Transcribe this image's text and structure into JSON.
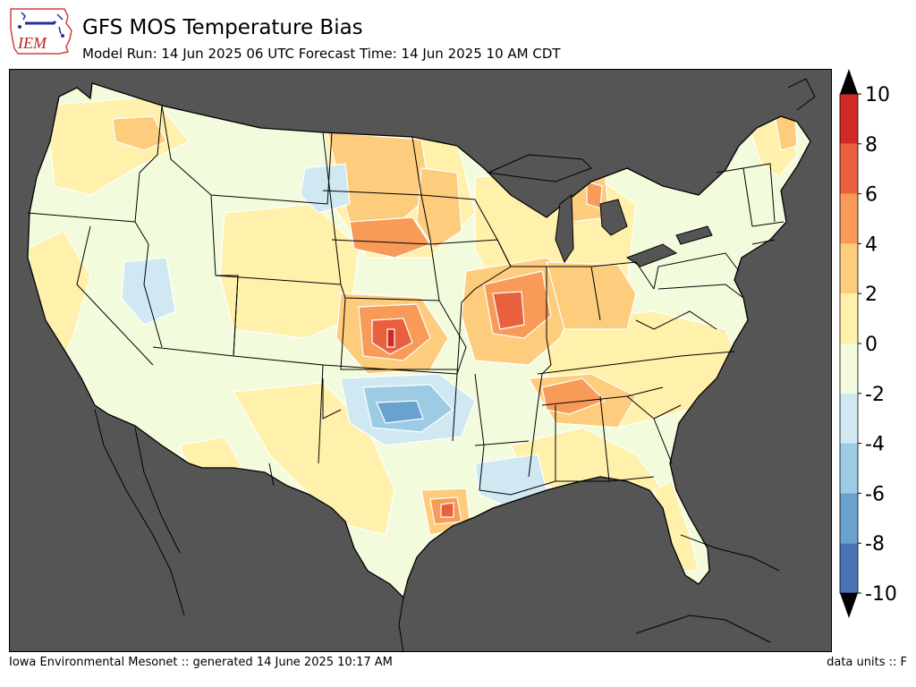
{
  "header": {
    "title": "GFS MOS Temperature Bias",
    "subtitle": "Model Run: 14 Jun 2025 06 UTC Forecast Time: 14 Jun 2025 10 AM CDT",
    "logo_text": "IEM"
  },
  "footer": {
    "generated": "Iowa Environmental Mesonet :: generated 14 June 2025 10:17 AM",
    "units": "data units :: F"
  },
  "colors": {
    "background": "#555555",
    "land_base": "#f3fbdd",
    "boundary": "#000000",
    "contour_line": "#ffffff"
  },
  "colorbar": {
    "min": -10,
    "max": 10,
    "step": 2,
    "labels": [
      "10",
      "8",
      "6",
      "4",
      "2",
      "0",
      "-2",
      "-4",
      "-6",
      "-8",
      "-10"
    ],
    "bins": [
      {
        "from": -10,
        "to": -8,
        "color": "#4a74b4"
      },
      {
        "from": -8,
        "to": -6,
        "color": "#6aa2cf"
      },
      {
        "from": -6,
        "to": -4,
        "color": "#9ccbe3"
      },
      {
        "from": -4,
        "to": -2,
        "color": "#cfe8f2"
      },
      {
        "from": -2,
        "to": 0,
        "color": "#f3fbdd"
      },
      {
        "from": 0,
        "to": 2,
        "color": "#fff0ab"
      },
      {
        "from": 2,
        "to": 4,
        "color": "#fdcc7d"
      },
      {
        "from": 4,
        "to": 6,
        "color": "#f89b58"
      },
      {
        "from": 6,
        "to": 8,
        "color": "#e9603e"
      },
      {
        "from": 8,
        "to": 10,
        "color": "#cf2a27"
      }
    ],
    "extend": "both"
  }
}
